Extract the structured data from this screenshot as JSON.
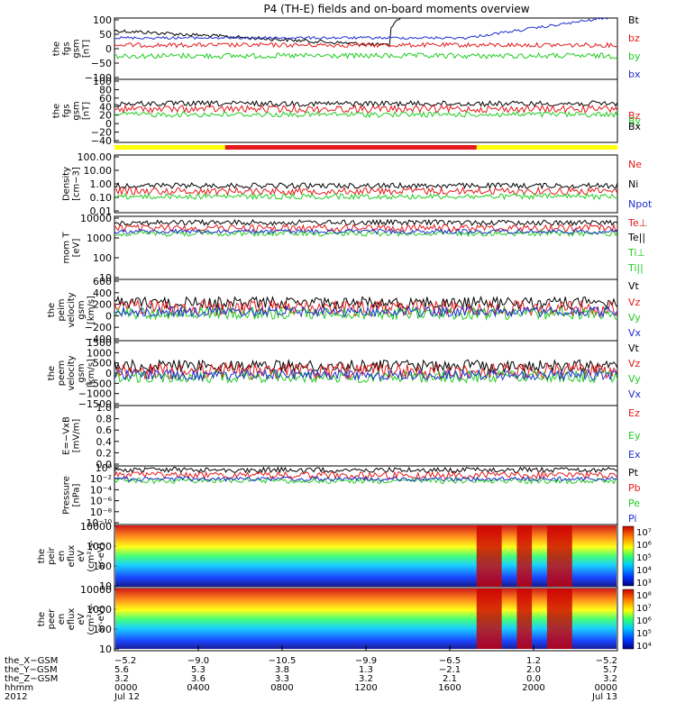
{
  "title": "P4 (TH-E) fields and on-board moments overview",
  "chart_data": [
    {
      "type": "line",
      "ylabel": [
        "the",
        "fgs",
        "gsm",
        "[nT]"
      ],
      "ytick_labels": [
        "100",
        "50",
        "0",
        "−50",
        "−100"
      ],
      "ylim": [
        -100,
        100
      ],
      "legend": [
        {
          "name": "Bt",
          "color": "#000000"
        },
        {
          "name": "bz",
          "color": "#e41a1c"
        },
        {
          "name": "by",
          "color": "#22cc22"
        },
        {
          "name": "bx",
          "color": "#1f2fd0"
        }
      ]
    },
    {
      "type": "line",
      "ylabel": [
        "the",
        "fgs",
        "gsm",
        "[nT]"
      ],
      "ytick_labels": [
        "100",
        "80",
        "60",
        "40",
        "20",
        "0",
        "−20",
        "−40"
      ],
      "ylim": [
        -50,
        100
      ],
      "legend": [
        {
          "name": "Bz",
          "color": "#e41a1c"
        },
        {
          "name": "By",
          "color": "#22cc22"
        },
        {
          "name": "Bx",
          "color": "#000000"
        }
      ]
    },
    {
      "type": "line",
      "ylabel": [
        "Density",
        "[cm−3]"
      ],
      "ytick_labels": [
        "100.00",
        "10.00",
        "1.00",
        "0.10",
        "0.01"
      ],
      "yscale": "log",
      "legend": [
        {
          "name": "Ne",
          "color": "#e41a1c"
        },
        {
          "name": "Ni",
          "color": "#000000"
        },
        {
          "name": "Npot",
          "color": "#1f2fd0"
        }
      ]
    },
    {
      "type": "line",
      "ylabel": [
        "mom T",
        "[eV]"
      ],
      "ytick_labels": [
        "10000",
        "1000",
        "100",
        "10"
      ],
      "yscale": "log",
      "legend": [
        {
          "name": "Te⊥",
          "color": "#e41a1c"
        },
        {
          "name": "Te||",
          "color": "#000000"
        },
        {
          "name": "Ti⊥",
          "color": "#22cc22"
        },
        {
          "name": "Ti||",
          "color": "#22cc22"
        }
      ]
    },
    {
      "type": "line",
      "ylabel": [
        "the",
        "peim",
        "velocity",
        "gsm",
        "[km/s]"
      ],
      "ytick_labels": [
        "600",
        "400",
        "200",
        "0",
        "−200",
        "−400"
      ],
      "ylim": [
        -400,
        600
      ],
      "legend": [
        {
          "name": "Vt",
          "color": "#000000"
        },
        {
          "name": "Vz",
          "color": "#e41a1c"
        },
        {
          "name": "Vy",
          "color": "#22cc22"
        },
        {
          "name": "Vx",
          "color": "#1f2fd0"
        }
      ]
    },
    {
      "type": "line",
      "ylabel": [
        "the",
        "peem",
        "velocity",
        "gsm",
        "[km/s]"
      ],
      "ytick_labels": [
        "1500",
        "1000",
        "500",
        "0",
        "−500",
        "−1000",
        "−1500"
      ],
      "ylim": [
        -1500,
        1500
      ],
      "legend": [
        {
          "name": "Vt",
          "color": "#000000"
        },
        {
          "name": "Vz",
          "color": "#e41a1c"
        },
        {
          "name": "Vy",
          "color": "#22cc22"
        },
        {
          "name": "Vx",
          "color": "#1f2fd0"
        }
      ]
    },
    {
      "type": "line",
      "ylabel": [
        "E=−VxB",
        "[mV/m]"
      ],
      "ytick_labels": [
        "1.0",
        "0.8",
        "0.6",
        "0.4",
        "0.2",
        "0.0"
      ],
      "ylim": [
        0,
        1
      ],
      "legend": [
        {
          "name": "Ez",
          "color": "#e41a1c"
        },
        {
          "name": "Ey",
          "color": "#22cc22"
        },
        {
          "name": "Ex",
          "color": "#1f2fd0"
        }
      ]
    },
    {
      "type": "line",
      "ylabel": [
        "Pressure",
        "[nPa]"
      ],
      "ytick_labels": [
        "10⁰",
        "10⁻²",
        "10⁻⁴",
        "10⁻⁶",
        "10⁻⁸",
        "10⁻¹⁰"
      ],
      "yscale": "log",
      "legend": [
        {
          "name": "Pt",
          "color": "#000000"
        },
        {
          "name": "Pb",
          "color": "#e41a1c"
        },
        {
          "name": "Pe",
          "color": "#22cc22"
        },
        {
          "name": "Pi",
          "color": "#1f2fd0"
        }
      ]
    },
    {
      "type": "heatmap",
      "ylabel": [
        "the",
        "peir",
        "en",
        "eflux",
        "eV",
        "(cm²-s-",
        "sr-eV)"
      ],
      "ytick_labels": [
        "10000",
        "1000",
        "100",
        "10"
      ],
      "yscale": "log",
      "colorbar_ticks": [
        "10⁷",
        "10⁶",
        "10⁵",
        "10⁴",
        "10³"
      ]
    },
    {
      "type": "heatmap",
      "ylabel": [
        "the",
        "peer",
        "en",
        "eflux",
        "eV",
        "(cm²-s-",
        "sr-eV)"
      ],
      "ytick_labels": [
        "10000",
        "1000",
        "100",
        "10"
      ],
      "yscale": "log",
      "colorbar_ticks": [
        "10⁸",
        "10⁷",
        "10⁶",
        "10⁵",
        "10⁴"
      ]
    }
  ],
  "xaxis": {
    "rows": [
      {
        "label": "the_X−GSM",
        "values": [
          "−5.2",
          "−9.0",
          "−10.5",
          "−9.9",
          "−6.5",
          "1.2",
          "−5.2"
        ]
      },
      {
        "label": "the_Y−GSM",
        "values": [
          "5.6",
          "5.3",
          "3.8",
          "1.3",
          "−2.1",
          "2.0",
          "5.7"
        ]
      },
      {
        "label": "the_Z−GSM",
        "values": [
          "3.2",
          "3.6",
          "3.3",
          "3.2",
          "2.1",
          "0.0",
          "3.2"
        ]
      },
      {
        "label": "hhmm",
        "values": [
          "0000",
          "0400",
          "0800",
          "1200",
          "1600",
          "2000",
          "0000"
        ]
      },
      {
        "label": "2012",
        "values": [
          "Jul 12",
          "",
          "",
          "",
          "",
          "",
          "Jul 13"
        ]
      }
    ]
  },
  "colors": {
    "black": "#000000",
    "red": "#e41a1c",
    "green": "#22cc22",
    "blue": "#1f2fd0",
    "yellow": "#ffff00"
  }
}
